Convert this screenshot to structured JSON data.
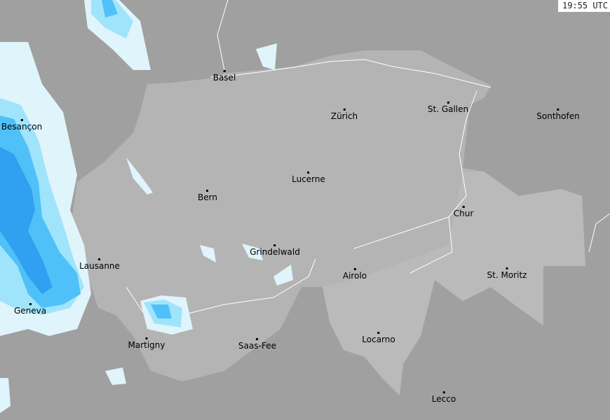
{
  "timestamp": "19:55 UTC",
  "colors": {
    "background": "#a0a0a0",
    "country": "#b4b4b4",
    "radar_light": "#e0f4fc",
    "radar_medium": "#a0e4fc",
    "radar_strong": "#50c0f8",
    "radar_heavy": "#30a0f0"
  },
  "cities": [
    {
      "name": "Basel"
    },
    {
      "name": "Zürich"
    },
    {
      "name": "St. Gallen"
    },
    {
      "name": "Sonthofen"
    },
    {
      "name": "Besançon"
    },
    {
      "name": "Lucerne"
    },
    {
      "name": "Bern"
    },
    {
      "name": "Chur"
    },
    {
      "name": "Grindelwald"
    },
    {
      "name": "Lausanne"
    },
    {
      "name": "Airolo"
    },
    {
      "name": "St. Moritz"
    },
    {
      "name": "Geneva"
    },
    {
      "name": "Martigny"
    },
    {
      "name": "Saas-Fee"
    },
    {
      "name": "Locarno"
    },
    {
      "name": "Lecco"
    }
  ]
}
